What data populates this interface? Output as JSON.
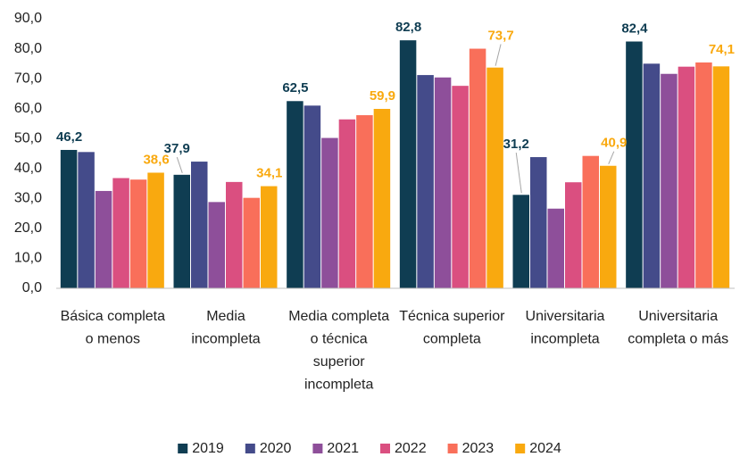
{
  "chart_data": {
    "type": "bar",
    "categories": [
      "Básica completa o menos",
      "Media incompleta",
      "Media completa o técnica superior incompleta",
      "Técnica superior completa",
      "Universitaria incompleta",
      "Universitaria completa o más"
    ],
    "series": [
      {
        "name": "2019",
        "color": "#0f3d52",
        "values": [
          46.2,
          37.9,
          62.5,
          82.8,
          31.2,
          82.4
        ],
        "value_labels": [
          "46,2",
          "37,9",
          "62,5",
          "82,8",
          "31,2",
          "82,4"
        ]
      },
      {
        "name": "2020",
        "color": "#444b8a",
        "values": [
          45.5,
          42.3,
          61.0,
          71.2,
          43.8,
          75.0
        ]
      },
      {
        "name": "2021",
        "color": "#8e4f9a",
        "values": [
          32.5,
          28.8,
          50.2,
          70.4,
          26.6,
          71.6
        ]
      },
      {
        "name": "2022",
        "color": "#da4f80",
        "values": [
          36.8,
          35.5,
          56.4,
          67.6,
          35.4,
          74.0
        ]
      },
      {
        "name": "2023",
        "color": "#f96f5a",
        "values": [
          36.3,
          30.2,
          57.8,
          80.0,
          44.2,
          75.4
        ]
      },
      {
        "name": "2024",
        "color": "#f9a90f",
        "values": [
          38.6,
          34.1,
          59.9,
          73.7,
          40.9,
          74.1
        ],
        "value_labels": [
          "38,6",
          "34,1",
          "59,9",
          "73,7",
          "40,9",
          "74,1"
        ]
      }
    ],
    "ylim": [
      0,
      90
    ],
    "yticks": [
      {
        "value": 0,
        "label": "0,0"
      },
      {
        "value": 10,
        "label": "10,0"
      },
      {
        "value": 20,
        "label": "20,0"
      },
      {
        "value": 30,
        "label": "30,0"
      },
      {
        "value": 40,
        "label": "40,0"
      },
      {
        "value": 50,
        "label": "50,0"
      },
      {
        "value": 60,
        "label": "60,0"
      },
      {
        "value": 70,
        "label": "70,0"
      },
      {
        "value": 80,
        "label": "80,0"
      },
      {
        "value": 90,
        "label": "90,0"
      }
    ],
    "grid": false,
    "legend": "bottom"
  }
}
